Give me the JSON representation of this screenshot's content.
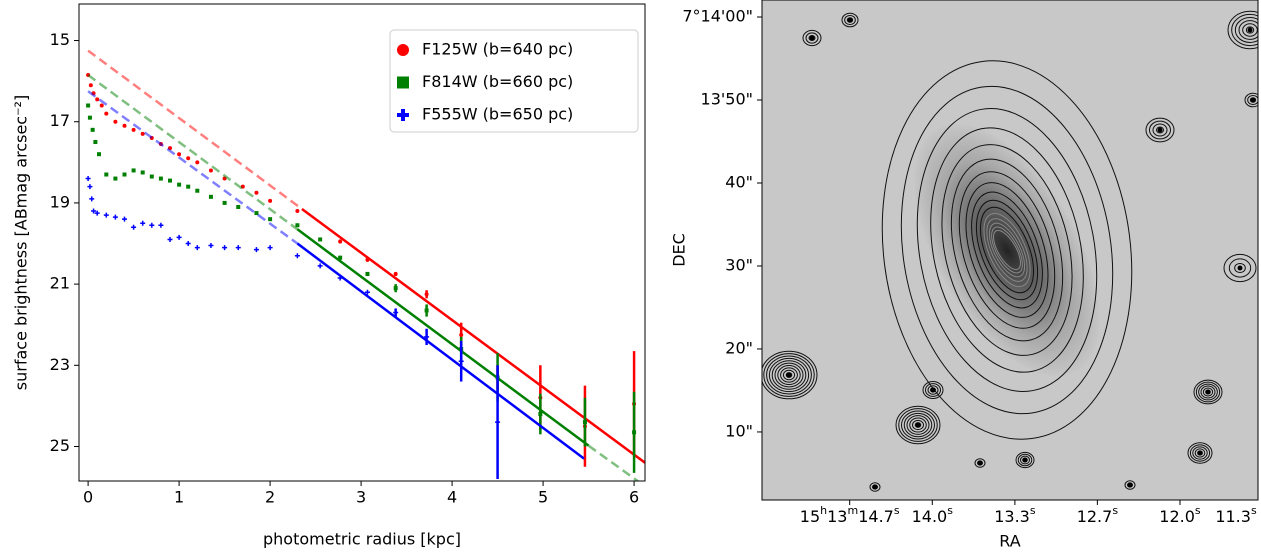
{
  "chart_data": [
    {
      "type": "scatter",
      "xlabel": "photometric radius [kpc]",
      "ylabel": "surface brightness [ABmag arcsec⁻²]",
      "xlim": [
        -0.1,
        6.12
      ],
      "ylim": [
        25.85,
        14.1
      ],
      "xticks": [
        0,
        1,
        2,
        3,
        4,
        5,
        6
      ],
      "yticks": [
        15,
        17,
        19,
        21,
        23,
        25
      ],
      "legend": "upper right",
      "series": [
        {
          "name": "F125W (b=640 pc)",
          "color": "#ff0000",
          "marker": "circle",
          "x": [
            0,
            0.03,
            0.06,
            0.1,
            0.15,
            0.2,
            0.3,
            0.4,
            0.5,
            0.6,
            0.7,
            0.8,
            0.9,
            1.0,
            1.1,
            1.2,
            1.35,
            1.5,
            1.7,
            1.85,
            2.0,
            2.3,
            2.77,
            3.07,
            3.38,
            3.72,
            4.1,
            4.5,
            4.97,
            5.46,
            6.0
          ],
          "values": [
            15.85,
            16.1,
            16.3,
            16.45,
            16.6,
            16.8,
            17.0,
            17.1,
            17.2,
            17.3,
            17.4,
            17.55,
            17.65,
            17.8,
            17.9,
            18.0,
            18.2,
            18.4,
            18.6,
            18.75,
            18.95,
            19.2,
            19.95,
            20.4,
            20.75,
            21.25,
            22.25,
            23.3,
            23.8,
            24.5,
            23.95
          ],
          "errors": [
            null,
            null,
            null,
            null,
            null,
            null,
            null,
            null,
            null,
            null,
            null,
            null,
            null,
            null,
            null,
            null,
            null,
            null,
            null,
            null,
            null,
            null,
            0.05,
            0.05,
            0.05,
            0.1,
            0.3,
            0.3,
            0.8,
            1.0,
            1.3
          ],
          "fit_x": [
            0,
            2.35,
            6.12
          ],
          "fit_y": [
            15.25,
            19.15,
            25.4
          ],
          "fit_styles": [
            "dashed",
            "solid"
          ]
        },
        {
          "name": "F814W (b=660 pc)",
          "color": "#008000",
          "marker": "square",
          "x": [
            0,
            0.02,
            0.05,
            0.08,
            0.12,
            0.2,
            0.3,
            0.4,
            0.5,
            0.6,
            0.7,
            0.8,
            0.9,
            1.0,
            1.1,
            1.2,
            1.35,
            1.5,
            1.65,
            1.85,
            2.0,
            2.3,
            2.55,
            2.77,
            3.07,
            3.38,
            3.72,
            4.1,
            4.5,
            4.97,
            5.46,
            6.0
          ],
          "values": [
            16.6,
            16.9,
            17.2,
            17.5,
            17.8,
            18.3,
            18.4,
            18.3,
            18.2,
            18.25,
            18.35,
            18.4,
            18.45,
            18.55,
            18.6,
            18.7,
            18.85,
            19.0,
            19.1,
            19.25,
            19.4,
            19.55,
            19.9,
            20.35,
            20.75,
            21.1,
            21.65,
            22.6,
            23.3,
            24.2,
            24.4,
            24.65
          ],
          "errors": [
            null,
            null,
            null,
            null,
            null,
            null,
            null,
            null,
            null,
            null,
            null,
            null,
            null,
            null,
            null,
            null,
            null,
            null,
            null,
            null,
            null,
            null,
            null,
            0.05,
            0.05,
            0.1,
            0.15,
            0.3,
            0.6,
            0.5,
            0.6,
            1.0
          ],
          "fit_x": [
            0,
            2.3,
            5.5,
            6.12
          ],
          "fit_y": [
            15.85,
            19.65,
            24.98,
            25.98
          ],
          "fit_styles": [
            "dashed",
            "solid",
            "dashed"
          ]
        },
        {
          "name": "F555W (b=650 pc)",
          "color": "#0000ff",
          "marker": "plus",
          "x": [
            0,
            0.02,
            0.04,
            0.06,
            0.1,
            0.2,
            0.3,
            0.4,
            0.5,
            0.6,
            0.7,
            0.8,
            0.9,
            1.0,
            1.1,
            1.2,
            1.35,
            1.5,
            1.65,
            1.85,
            2.0,
            2.3,
            2.55,
            2.77,
            3.07,
            3.38,
            3.72,
            4.1,
            4.5
          ],
          "values": [
            18.4,
            18.6,
            18.9,
            19.2,
            19.25,
            19.3,
            19.35,
            19.4,
            19.6,
            19.5,
            19.55,
            19.55,
            19.9,
            19.85,
            20.0,
            20.1,
            20.05,
            20.1,
            20.1,
            20.15,
            20.1,
            20.3,
            20.55,
            20.85,
            21.2,
            21.7,
            22.3,
            22.9,
            24.4
          ],
          "errors": [
            null,
            null,
            null,
            null,
            null,
            null,
            null,
            null,
            null,
            null,
            null,
            null,
            null,
            null,
            null,
            null,
            null,
            null,
            null,
            null,
            null,
            null,
            null,
            null,
            null,
            0.1,
            0.2,
            0.5,
            1.4
          ],
          "fit_x": [
            0,
            2.3,
            5.45
          ],
          "fit_y": [
            16.25,
            20.0,
            25.3
          ],
          "fit_styles": [
            "dashed",
            "solid"
          ]
        }
      ]
    },
    {
      "type": "image",
      "xlabel": "RA",
      "ylabel": "DEC",
      "xlim": [
        15.375,
        11.37
      ],
      "ylim": [
        1.8,
        62.05
      ],
      "xticks": [
        {
          "value": 14.667,
          "label": "15h13m14.7s"
        },
        {
          "value": 14.0,
          "label": "14.0s"
        },
        {
          "value": 13.333,
          "label": "13.3s"
        },
        {
          "value": 12.667,
          "label": "12.7s"
        },
        {
          "value": 12.0,
          "label": "12.0s"
        },
        {
          "value": 11.333,
          "label": "11.3s"
        }
      ],
      "yticks": [
        {
          "value": 60,
          "label": "7°14'00\""
        },
        {
          "value": 50,
          "label": "13'50\""
        },
        {
          "value": 40,
          "label": "40\""
        },
        {
          "value": 30,
          "label": "30\""
        },
        {
          "value": 20,
          "label": "20\""
        },
        {
          "value": 10,
          "label": "10\""
        }
      ]
    }
  ]
}
